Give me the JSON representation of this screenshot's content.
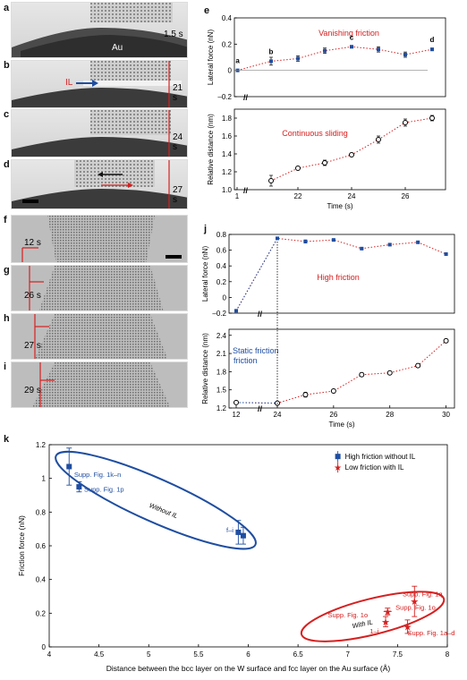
{
  "panel_letters": {
    "a": "a",
    "b": "b",
    "c": "c",
    "d": "d",
    "e": "e",
    "f": "f",
    "g": "g",
    "h": "h",
    "i": "i",
    "j": "j",
    "k": "k"
  },
  "tem_labels": {
    "a_time": "1.5 s",
    "a_au": "Au",
    "b_time": "21 s",
    "b_il": "IL",
    "c_time": "24 s",
    "d_time": "27 s",
    "f_time": "12 s",
    "g_time": "26 s",
    "h_time": "27 s",
    "i_time": "29 s"
  },
  "colors": {
    "blue": "#1f4ea1",
    "red": "#d62020",
    "text_red": "#d62020",
    "text_blue": "#1f4ea1"
  },
  "chart_data": [
    {
      "id": "e_top",
      "type": "scatter",
      "title": "Vanishing friction",
      "ylabel": "Lateral force (nN)",
      "ylim": [
        -0.2,
        0.4
      ],
      "yticks": [
        -0.2,
        0,
        0.2,
        0.4
      ],
      "yticklabels": [
        "–0.2",
        "0",
        "0.2",
        "0.4"
      ],
      "x": [
        1.5,
        21,
        22,
        23,
        24,
        25,
        26,
        27
      ],
      "y": [
        0.0,
        0.07,
        0.09,
        0.15,
        0.18,
        0.16,
        0.12,
        0.16
      ],
      "err": [
        0.0,
        0.03,
        0.02,
        0.02,
        0.01,
        0.02,
        0.02,
        0.01
      ],
      "point_labels": [
        "a",
        "b",
        "",
        "",
        "c",
        "",
        "",
        "d"
      ]
    },
    {
      "id": "e_bottom",
      "type": "scatter",
      "title": "Continuous sliding",
      "ylabel": "Relative distance (nm)",
      "xlabel": "Time (s)",
      "ylim": [
        1.0,
        1.9
      ],
      "yticks": [
        1.0,
        1.2,
        1.4,
        1.6,
        1.8
      ],
      "yticklabels": [
        "1.0",
        "1.2",
        "1.4",
        "1.6",
        "1.8"
      ],
      "xticks": [
        1,
        22,
        24,
        26
      ],
      "xticklabels": [
        "1",
        "22",
        "24",
        "26"
      ],
      "x": [
        21,
        22,
        23,
        24,
        25,
        26,
        27
      ],
      "y": [
        1.1,
        1.24,
        1.3,
        1.39,
        1.56,
        1.75,
        1.8
      ],
      "err": [
        0.06,
        0.02,
        0.03,
        0.02,
        0.04,
        0.04,
        0.03
      ]
    },
    {
      "id": "j_top",
      "type": "scatter",
      "title": "High friction",
      "ylabel": "Lateral force (nN)",
      "ylim": [
        -0.2,
        0.8
      ],
      "yticks": [
        -0.2,
        0,
        0.2,
        0.4,
        0.6,
        0.8
      ],
      "yticklabels": [
        "–0.2",
        "0",
        "0.2",
        "0.4",
        "0.6",
        "0.8"
      ],
      "x": [
        12,
        24,
        25,
        26,
        27,
        28,
        29,
        30
      ],
      "y": [
        -0.17,
        0.75,
        0.71,
        0.73,
        0.62,
        0.67,
        0.7,
        0.55
      ],
      "err": [
        0.01,
        0.01,
        0.02,
        0.01,
        0.01,
        0.01,
        0.01,
        0.01
      ]
    },
    {
      "id": "j_bottom",
      "type": "scatter",
      "title": "",
      "annotation": "Static friction",
      "ylabel": "Relative distance (nm)",
      "xlabel": "Time (s)",
      "ylim": [
        1.2,
        2.5
      ],
      "yticks": [
        1.2,
        1.5,
        1.8,
        2.1,
        2.4
      ],
      "yticklabels": [
        "1.2",
        "1.5",
        "1.8",
        "2.1",
        "2.4"
      ],
      "xticks": [
        12,
        24,
        26,
        28,
        30
      ],
      "xticklabels": [
        "12",
        "24",
        "26",
        "28",
        "30"
      ],
      "x": [
        12,
        24,
        25,
        26,
        27,
        28,
        29,
        30
      ],
      "y": [
        1.29,
        1.28,
        1.42,
        1.48,
        1.75,
        1.78,
        1.9,
        2.31
      ],
      "err": [
        0.02,
        0.02,
        0.04,
        0.03,
        0.03,
        0.02,
        0.03,
        0.03
      ]
    },
    {
      "id": "k",
      "type": "scatter",
      "xlabel": "Distance between the bcc layer on the W surface  and fcc layer on the Au surface (Å)",
      "ylabel": "Friction force (nN)",
      "xlim": [
        4,
        8
      ],
      "ylim": [
        0,
        1.2
      ],
      "xticks": [
        4,
        4.5,
        5,
        5.5,
        6,
        6.5,
        7,
        7.5,
        8
      ],
      "xticklabels": [
        "4",
        "4.5",
        "5",
        "5.5",
        "6",
        "6.5",
        "7",
        "7.5",
        "8"
      ],
      "yticks": [
        0,
        0.2,
        0.4,
        0.6,
        0.8,
        1.0,
        1.2
      ],
      "yticklabels": [
        "0",
        "0.2",
        "0.4",
        "0.6",
        "0.8",
        "1",
        "1.2"
      ],
      "legend": [
        "High friction without IL",
        "Low friction with IL"
      ],
      "series": [
        {
          "name": "High friction without IL",
          "x": [
            4.2,
            4.3,
            5.9,
            5.95
          ],
          "y": [
            1.07,
            0.95,
            0.68,
            0.66
          ],
          "err": [
            0.11,
            0.03,
            0.07,
            0.05
          ],
          "xerr": [
            0.0,
            0.0,
            0.02,
            0.0
          ]
        },
        {
          "name": "Low friction with IL",
          "x": [
            7.38,
            7.4,
            7.6,
            7.67
          ],
          "y": [
            0.15,
            0.21,
            0.12,
            0.27
          ],
          "err": [
            0.03,
            0.02,
            0.04,
            0.09
          ],
          "xerr": [
            0.0,
            0.04,
            0.0,
            0.0
          ]
        }
      ],
      "annotations": [
        "Supp. Fig. 1k–n",
        "Supp. Fig. 1p",
        "Without IL",
        "f–i",
        "Supp. Fig. 1o",
        "Supp. Fig. 1q",
        "With IL",
        "1–i",
        "Supp. Fig. 1a–d"
      ]
    }
  ]
}
